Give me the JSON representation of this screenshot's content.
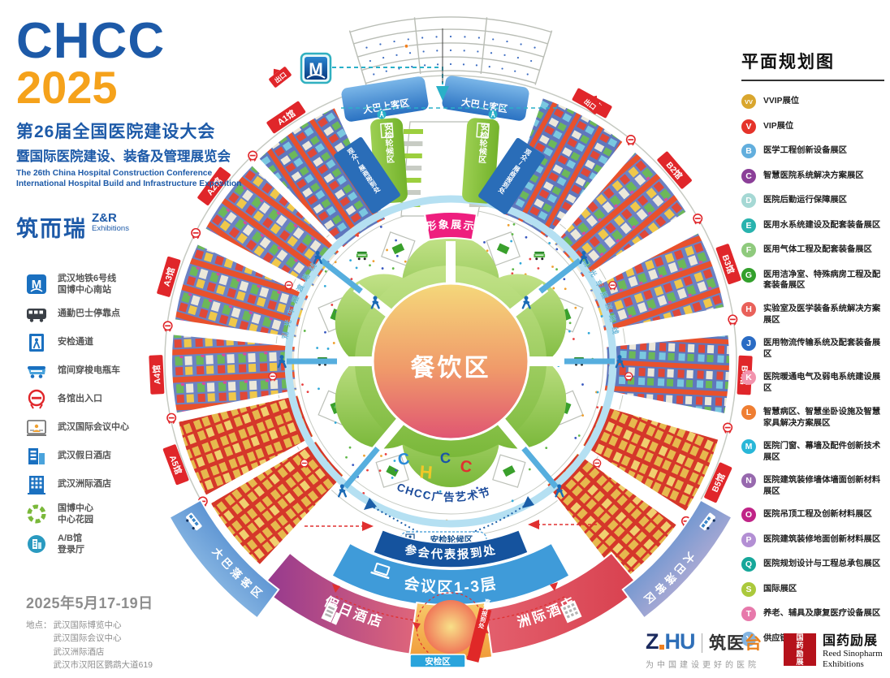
{
  "header": {
    "logo1": "CHCC",
    "logo2": "2025",
    "title_cn": "第26届全国医院建设大会",
    "subtitle_cn": "暨国际医院建设、装备及管理展览会",
    "title_en1": "The 26th China Hospital Construction Conference",
    "title_en2": "International Hospital Build and Infrastructure Exposition",
    "organizer_cn": "筑而瑞",
    "organizer_zr": "Z&R",
    "organizer_ex": "Exhibitions"
  },
  "legend": {
    "items": [
      {
        "icon": "metro",
        "label": "武汉地铁6号线",
        "label2": "国博中心南站"
      },
      {
        "icon": "bus",
        "label": "通勤巴士停靠点",
        "label2": ""
      },
      {
        "icon": "security",
        "label": "安检通道",
        "label2": ""
      },
      {
        "icon": "shuttle",
        "label": "馆间穿梭电瓶车",
        "label2": ""
      },
      {
        "icon": "exit",
        "label": "各馆出入口",
        "label2": ""
      },
      {
        "icon": "conference",
        "label": "武汉国际会议中心",
        "label2": ""
      },
      {
        "icon": "hotel1",
        "label": "武汉假日酒店",
        "label2": ""
      },
      {
        "icon": "hotel2",
        "label": "武汉洲际酒店",
        "label2": ""
      },
      {
        "icon": "garden",
        "label": "国博中心",
        "label2": "中心花园"
      },
      {
        "icon": "lobby",
        "label": "A/B馆",
        "label2": "登录厅"
      }
    ]
  },
  "event": {
    "date": "2025年5月17-19日",
    "venue_label": "地点：",
    "venues": [
      "武汉国际博览中心",
      "武汉国际会议中心",
      "武汉洲际酒店",
      "武汉市汉阳区鹦鹉大道619"
    ]
  },
  "zone_legend": {
    "title": "平面规划图",
    "items": [
      {
        "code": "VV",
        "color": "#d9a62e",
        "label": "VVIP展位"
      },
      {
        "code": "V",
        "color": "#e5332a",
        "label": "VIP展位"
      },
      {
        "code": "B",
        "color": "#62aedd",
        "label": "医学工程创新设备展区"
      },
      {
        "code": "C",
        "color": "#8b3f98",
        "label": "智慧医院系统解决方案展区"
      },
      {
        "code": "D",
        "color": "#a5d8d4",
        "label": "医院后勤运行保障展区"
      },
      {
        "code": "E",
        "color": "#29b3ae",
        "label": "医用水系统建设及配套装备展区"
      },
      {
        "code": "F",
        "color": "#8fca7d",
        "label": "医用气体工程及配套装备展区"
      },
      {
        "code": "G",
        "color": "#33a02c",
        "label": "医用洁净室、特殊病房工程及配套装备展区"
      },
      {
        "code": "H",
        "color": "#e9615a",
        "label": "实验室及医学装备系统解决方案展区"
      },
      {
        "code": "J",
        "color": "#2a6cc4",
        "label": "医用物流传输系统及配套装备展区"
      },
      {
        "code": "K",
        "color": "#f293ad",
        "label": "医院暖通电气及弱电系统建设展区"
      },
      {
        "code": "L",
        "color": "#ef7e32",
        "label": "智慧病区、智慧坐卧设施及智慧家具解决方案展区"
      },
      {
        "code": "M",
        "color": "#29b7d8",
        "label": "医院门窗、幕墙及配件创新技术展区"
      },
      {
        "code": "N",
        "color": "#9769ae",
        "label": "医院建筑装修墙体墙面创新材料展区"
      },
      {
        "code": "O",
        "color": "#c02487",
        "label": "医院吊顶工程及创新材料展区"
      },
      {
        "code": "P",
        "color": "#b38fd4",
        "label": "医院建筑装修地面创新材料展区"
      },
      {
        "code": "Q",
        "color": "#16a79a",
        "label": "医院规划设计与工程总承包展区"
      },
      {
        "code": "S",
        "color": "#abc93c",
        "label": "国际展区"
      },
      {
        "code": "T",
        "color": "#e779ab",
        "label": "养老、辅具及康复医疗设备展区"
      },
      {
        "code": "Y",
        "color": "#84b5e2",
        "label": "供应链展区"
      }
    ]
  },
  "map": {
    "halls": [
      "A1馆",
      "A2馆",
      "A3馆",
      "A4馆",
      "A5馆",
      "A6馆",
      "B1馆",
      "B2馆",
      "B3馆",
      "B4馆",
      "B5馆",
      "B6馆"
    ],
    "center": "餐饮区",
    "image_display": "形象展示",
    "art_festival": "CHCC广告艺术节",
    "letters": [
      "C",
      "H",
      "C",
      "C"
    ],
    "security_wait": "安检轮候区",
    "security_queue": "安检轮候区",
    "delegate_reg": "参会代表报到处",
    "conference_zone": "会议区1-3层",
    "hotel_left": "假日酒店",
    "hotel_right": "洲际酒店",
    "security_area": "安检区",
    "guest_reg": "嘉宾报到处",
    "bus_board": "大巴上客区",
    "bus_drop": "大巴落客区",
    "visitor_reg": "观众/展商报到处",
    "ring_text": "观光车摆渡路线",
    "metro": "M",
    "exit_tag": "出口"
  },
  "footer": {
    "zhu_z": "Z",
    "zhu_hu": "HU",
    "zhu_brand": "筑医",
    "zhu_brand_tai": "台",
    "zhu_tagline": "为中国建设更好的医院",
    "rs_seal": "国药励展",
    "rs_cn": "国药励展",
    "rs_en1": "Reed Sinopharm",
    "rs_en2": "Exhibitions"
  }
}
